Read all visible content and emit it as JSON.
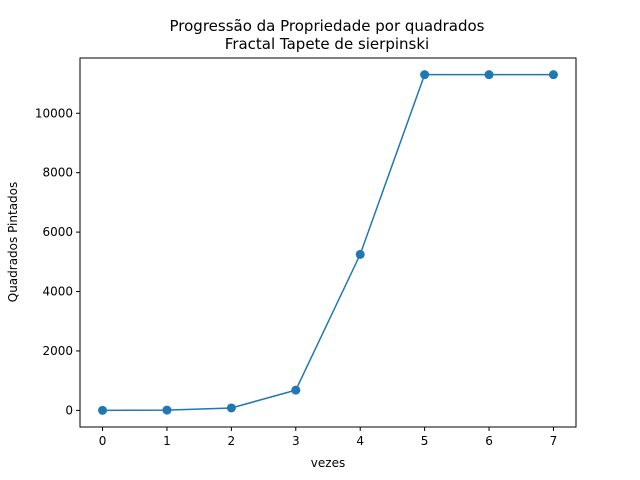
{
  "chart_data": {
    "type": "line",
    "title": "Progressão da Propriedade por quadrados",
    "subtitle": "Fractal Tapete de sierpinski",
    "xlabel": "vezes",
    "ylabel": "Quadrados Pintados",
    "x": [
      0,
      1,
      2,
      3,
      4,
      5,
      6,
      7
    ],
    "series": [
      {
        "values": [
          1,
          9,
          81,
          680,
          5250,
          11300,
          11300,
          11300
        ]
      }
    ],
    "xticks": [
      "0",
      "1",
      "2",
      "3",
      "4",
      "5",
      "6",
      "7"
    ],
    "yticks": [
      "0",
      "2000",
      "4000",
      "6000",
      "8000",
      "10000"
    ],
    "xlim": [
      -0.35,
      7.35
    ],
    "ylim": [
      -560,
      11860
    ],
    "grid": false,
    "colors": {
      "series": "#1f77b4",
      "axis": "#000000"
    }
  }
}
